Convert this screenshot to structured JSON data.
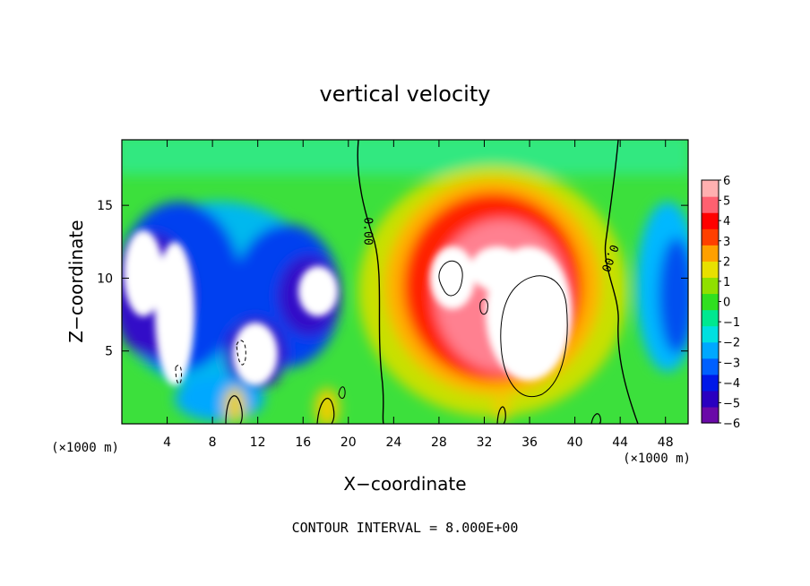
{
  "chart_data": {
    "type": "heatmap",
    "title": "vertical velocity",
    "xlabel": "X−coordinate",
    "ylabel": "Z−coordinate",
    "x_unit": "(×1000 m)",
    "xlim": [
      0,
      50
    ],
    "ylim": [
      0,
      19.5
    ],
    "x_ticks": [
      {
        "value": 4,
        "label": "4"
      },
      {
        "value": 8,
        "label": "8"
      },
      {
        "value": 12,
        "label": "12"
      },
      {
        "value": 16,
        "label": "16"
      },
      {
        "value": 20,
        "label": "20"
      },
      {
        "value": 24,
        "label": "24"
      },
      {
        "value": 28,
        "label": "28"
      },
      {
        "value": 32,
        "label": "32"
      },
      {
        "value": 36,
        "label": "36"
      },
      {
        "value": 40,
        "label": "40"
      },
      {
        "value": 44,
        "label": "44"
      },
      {
        "value": 48,
        "label": "48"
      }
    ],
    "y_ticks": [
      {
        "value": 5,
        "label": "5"
      },
      {
        "value": 10,
        "label": "10"
      },
      {
        "value": 15,
        "label": "15"
      }
    ],
    "colorbar": {
      "min": -6,
      "max": 6,
      "labels": [
        "6",
        "5",
        "4",
        "3",
        "2",
        "1",
        "0",
        "−1",
        "−2",
        "−3",
        "−4",
        "−5",
        "−6"
      ],
      "colors": [
        "#6a0aa8",
        "#2a00c0",
        "#0018e8",
        "#0060ff",
        "#00a8ff",
        "#00e0e0",
        "#00e890",
        "#30e020",
        "#90e000",
        "#e8e000",
        "#ffa000",
        "#ff4000",
        "#ff0000",
        "#ff6070",
        "#ffb0b0"
      ]
    },
    "contour_labels": [
      "0.00",
      "0.00"
    ],
    "contour_interval_text": "CONTOUR INTERVAL = 8.000E+00",
    "features": [
      {
        "kind": "updraft",
        "x_center": 35,
        "z_center": 9,
        "x_span": [
          26,
          42
        ],
        "z_span": [
          2,
          16
        ],
        "max": 6
      },
      {
        "kind": "downdraft",
        "x_center": 7,
        "z_center": 9,
        "x_span": [
          0,
          20
        ],
        "z_span": [
          2,
          13
        ],
        "min": -6
      },
      {
        "kind": "downdraft",
        "x_center": 48,
        "z_center": 9,
        "x_span": [
          44,
          50
        ],
        "z_span": [
          3,
          16
        ],
        "min": -4
      }
    ]
  }
}
